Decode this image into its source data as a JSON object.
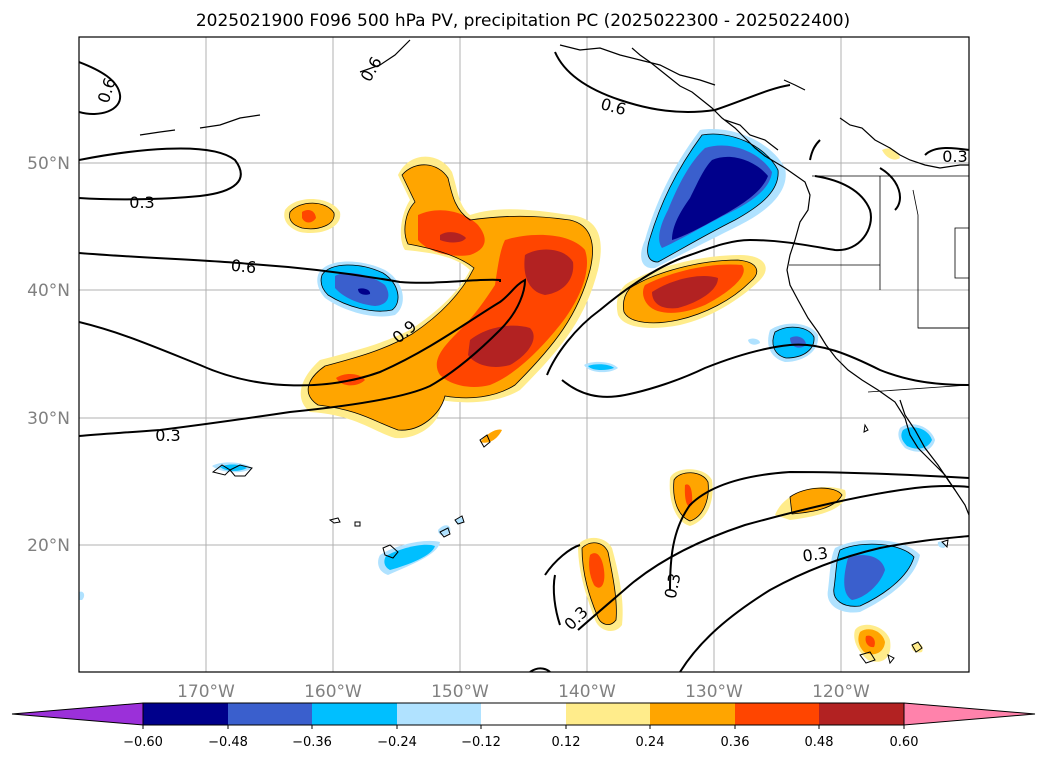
{
  "title": "2025021900 F096 500 hPa PV, precipitation PC (2025022300 - 2025022400)",
  "lon_labels": [
    "170°W",
    "160°W",
    "150°W",
    "140°W",
    "130°W",
    "120°W"
  ],
  "lat_labels": [
    "50°N",
    "40°N",
    "30°N",
    "20°N"
  ],
  "contour_labels": [
    "0.6",
    "0.6",
    "0.3",
    "0.6",
    "0.9",
    "0.3",
    "0.3",
    "0.3",
    "0.3",
    "0.3",
    "0.6"
  ],
  "colorbar": {
    "ticks": [
      "−0.60",
      "−0.48",
      "−0.36",
      "−0.24",
      "−0.12",
      "0.12",
      "0.24",
      "0.36",
      "0.48",
      "0.60"
    ],
    "colors": [
      "#9b30d9",
      "#00008b",
      "#3a5fcd",
      "#00bfff",
      "#b0e2ff",
      "#ffffff",
      "#ffec8b",
      "#ffa500",
      "#ff4500",
      "#b22222",
      "#ff82ab"
    ]
  },
  "colors": {
    "dark_blue": "#00008b",
    "royal_blue": "#3a5fcd",
    "sky_blue": "#00bfff",
    "light_blue": "#b0e2ff",
    "light_yellow": "#ffec8b",
    "orange": "#ffa500",
    "orange_red": "#ff4500",
    "firebrick": "#b22222",
    "gridline": "#b0b0b0",
    "tick_label": "#808080"
  }
}
